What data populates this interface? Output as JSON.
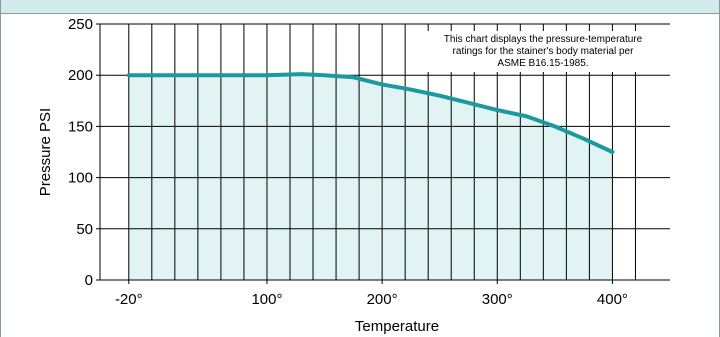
{
  "chart_data": {
    "type": "area",
    "title": "",
    "xlabel": "Temperature",
    "ylabel": "Pressure PSI",
    "xlim": [
      -45,
      450
    ],
    "ylim": [
      0,
      250
    ],
    "x_ticks": [
      -20,
      100,
      200,
      300,
      400
    ],
    "x_tick_labels": [
      "-20°",
      "100°",
      "200°",
      "300°",
      "400°"
    ],
    "y_ticks": [
      0,
      50,
      100,
      150,
      200,
      250
    ],
    "y_tick_labels": [
      "0",
      "50",
      "100",
      "150",
      "200",
      "250"
    ],
    "grid": true,
    "series": [
      {
        "x": [
          -20,
          0,
          50,
          100,
          130,
          150,
          175,
          200,
          225,
          250,
          275,
          300,
          325,
          350,
          375,
          400
        ],
        "y": [
          200,
          200,
          200,
          200,
          201,
          200,
          198,
          191,
          186,
          180,
          173,
          166,
          160,
          150,
          138,
          125
        ]
      }
    ],
    "annotation": [
      "This chart displays the pressure-temperature",
      "ratings  for the stainer's body material per",
      "ASME B16.15-1985."
    ],
    "colors": {
      "line": "#1a9a9e",
      "fill": "#e2f3f3",
      "grid": "#000000",
      "header": "#d2ecec"
    }
  }
}
